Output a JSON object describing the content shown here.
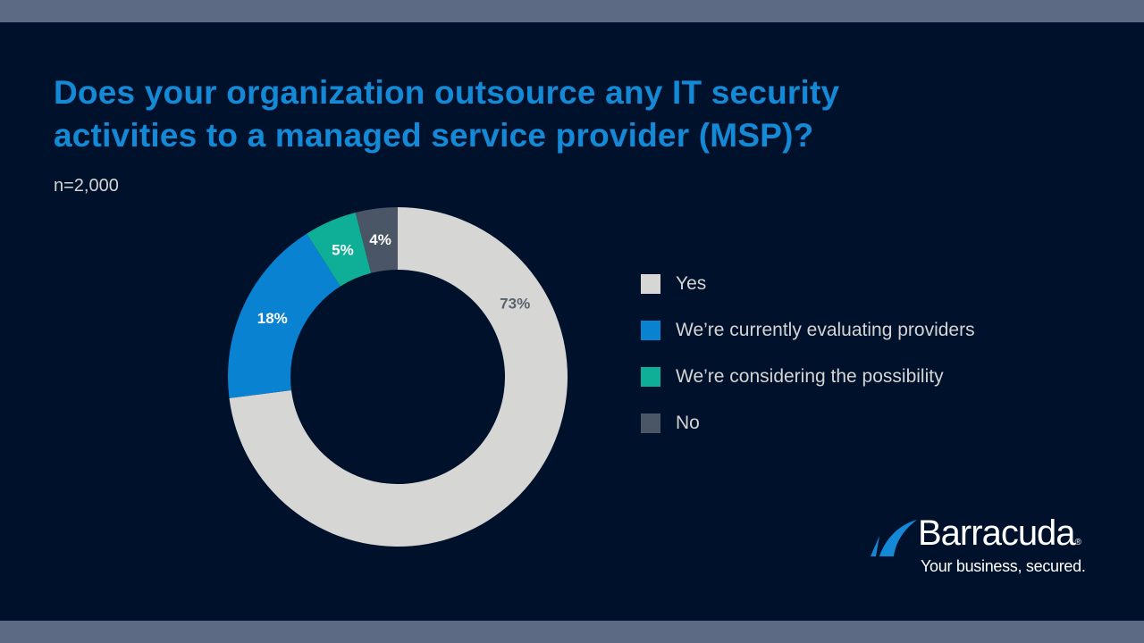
{
  "title": "Does your organization outsource any IT security activities to a managed service provider (MSP)?",
  "sample_size": "n=2,000",
  "brand": {
    "name": "Barracuda",
    "registered_mark": "®",
    "tagline": "Your business, secured.",
    "icon": "barracuda-fin-logo-icon"
  },
  "colors": {
    "background": "#00112b",
    "band": "#5c6a84",
    "title": "#1489d6"
  },
  "chart_data": {
    "type": "pie",
    "subtype": "donut",
    "title": "Does your organization outsource any IT security activities to a managed service provider (MSP)?",
    "subtitle": "n=2,000",
    "categories": [
      "Yes",
      "We’re currently evaluating providers",
      "We’re considering the possibility",
      "No"
    ],
    "values": [
      73,
      18,
      5,
      4
    ],
    "labels": [
      "73%",
      "18%",
      "5%",
      "4%"
    ],
    "colors": [
      "#d6d6d4",
      "#0a82d2",
      "#0fae96",
      "#4a5566"
    ],
    "label_colors": [
      "#5a6270",
      "#ffffff",
      "#ffffff",
      "#ffffff"
    ],
    "unit": "%",
    "legend_position": "right"
  }
}
